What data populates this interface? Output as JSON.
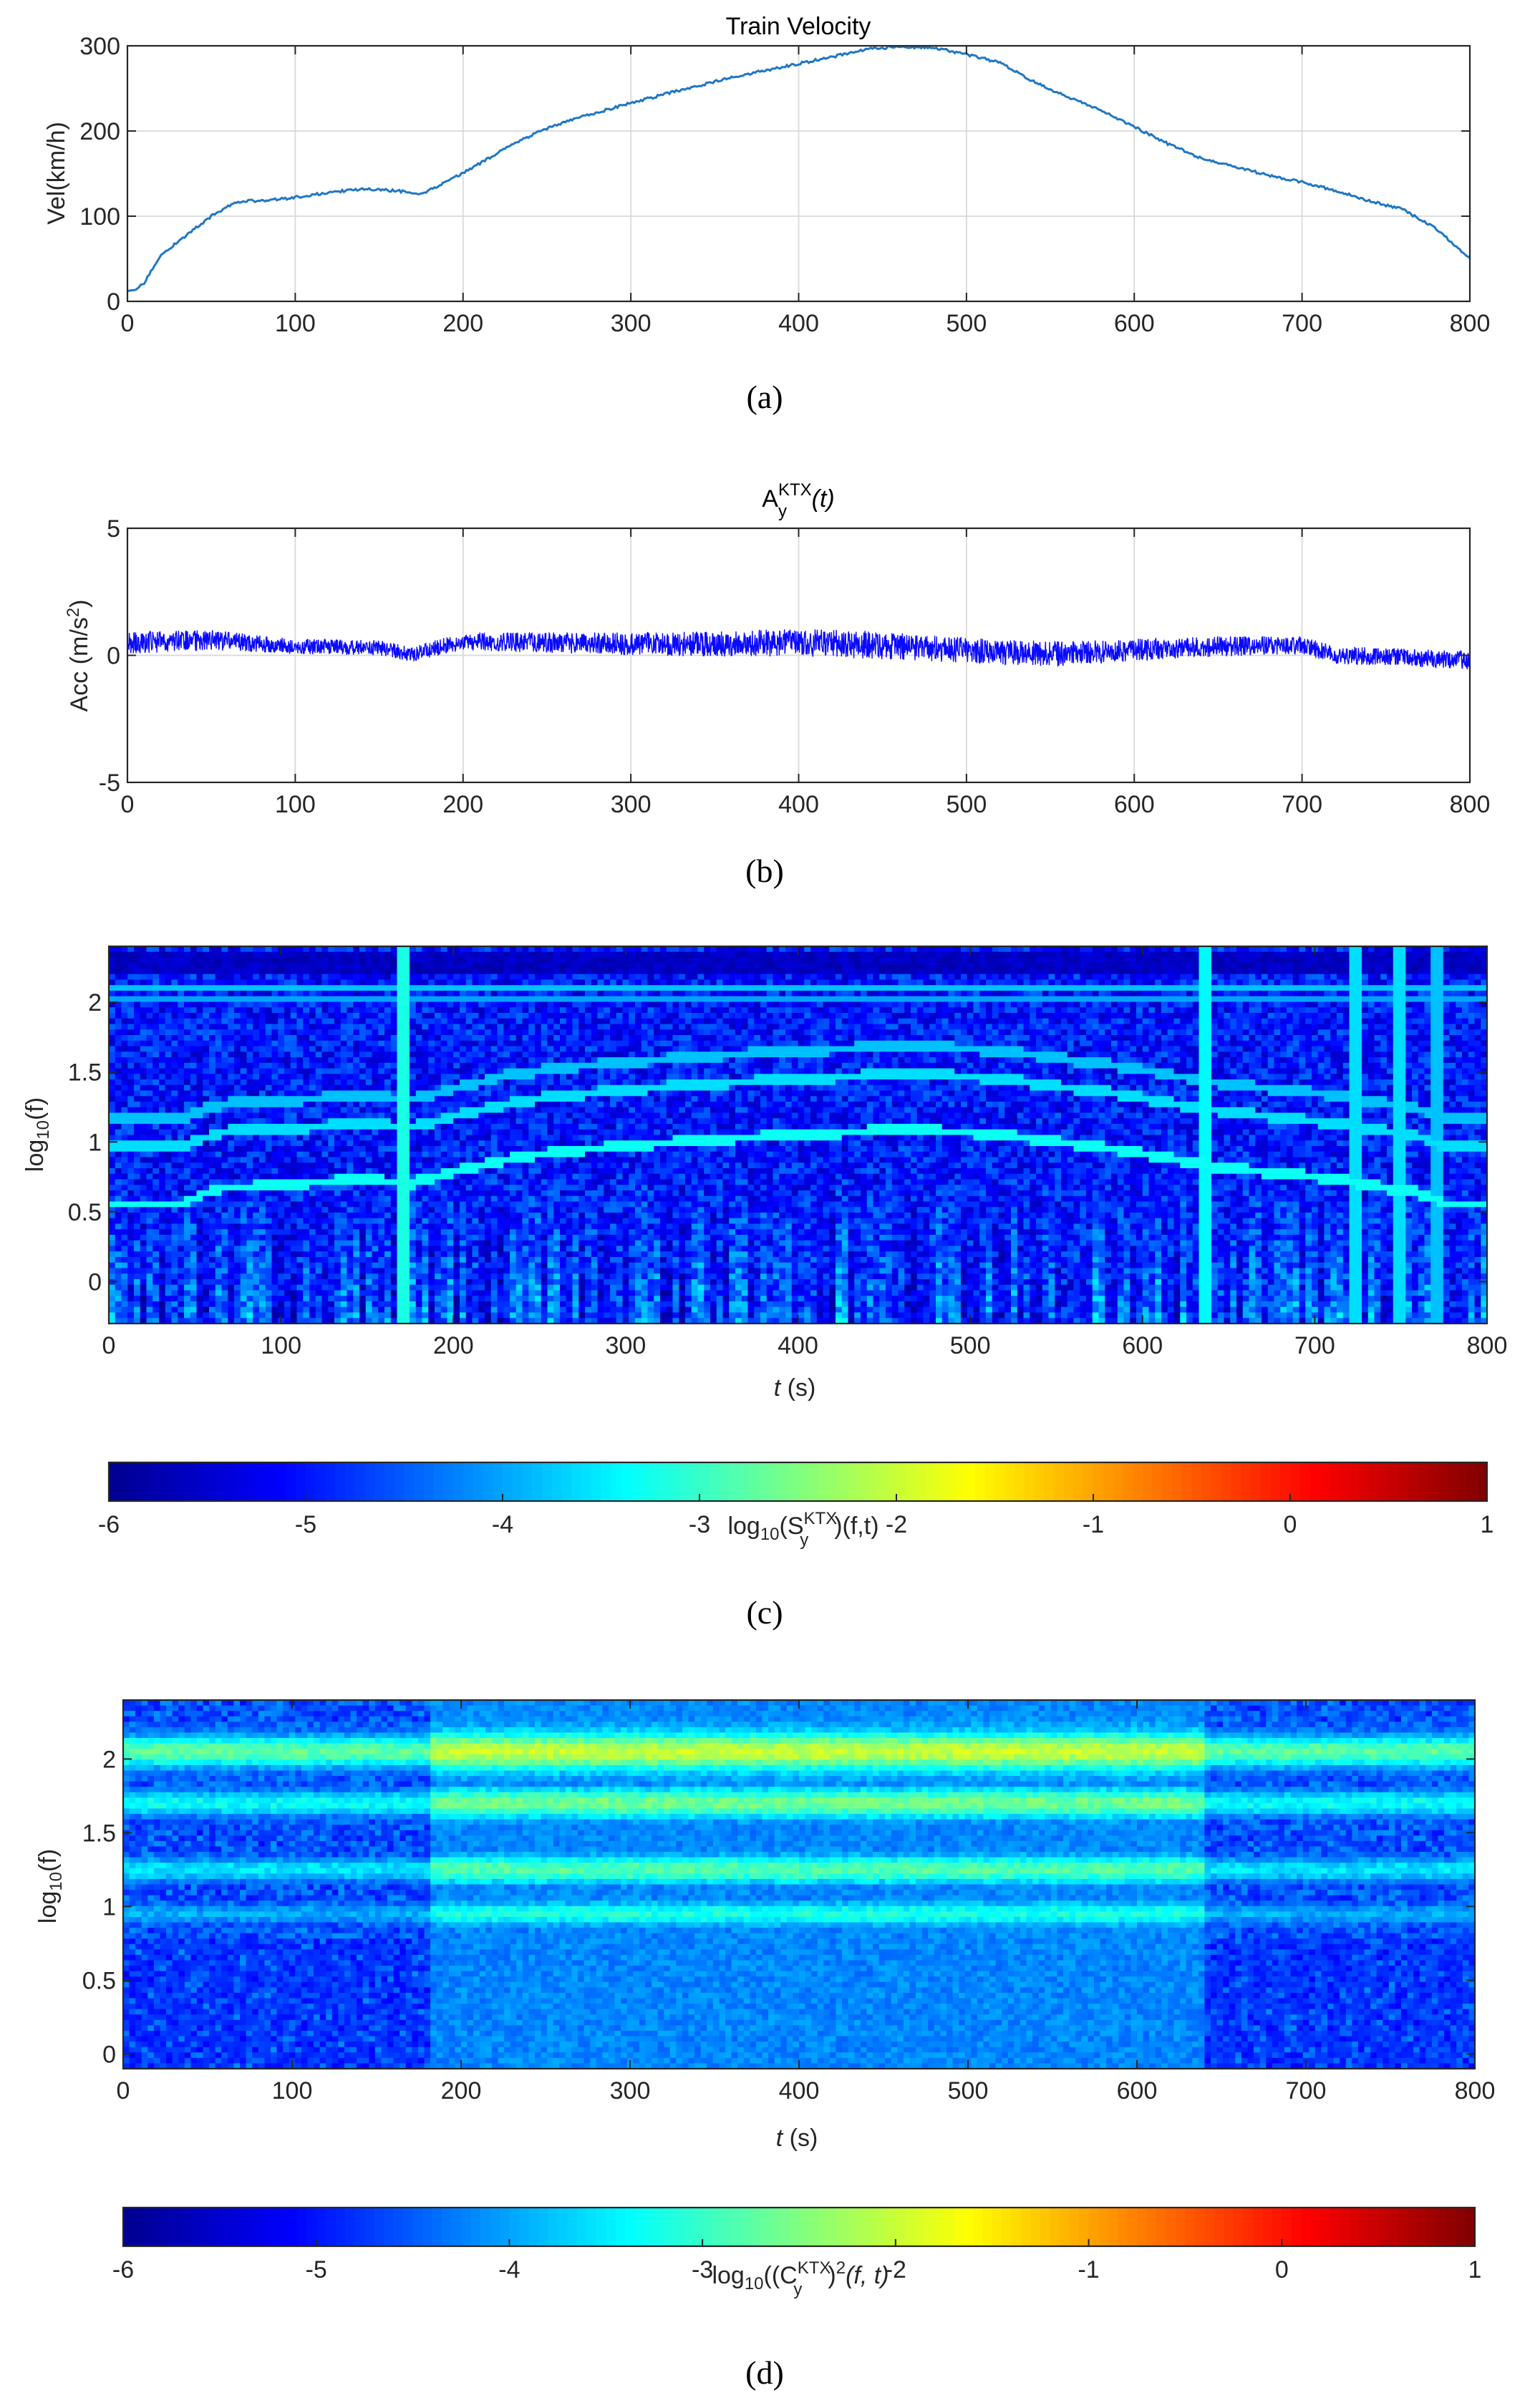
{
  "chart_data": [
    {
      "panel": "a",
      "caption": "(a)",
      "type": "line",
      "title": "Train Velocity",
      "xlabel": "",
      "ylabel": "Vel(km/h)",
      "xlim": [
        0,
        800
      ],
      "ylim": [
        0,
        300
      ],
      "xticks": [
        0,
        100,
        200,
        300,
        400,
        500,
        600,
        700,
        800
      ],
      "yticks": [
        0,
        100,
        200,
        300
      ],
      "grid": true,
      "line_color": "#1f77c4",
      "series": [
        {
          "x": [
            0,
            5,
            10,
            15,
            20,
            30,
            40,
            50,
            60,
            70,
            80,
            100,
            120,
            140,
            160,
            175,
            190,
            210,
            230,
            250,
            270,
            300,
            330,
            360,
            390,
            420,
            440,
            460,
            480,
            500,
            520,
            540,
            560,
            580,
            600,
            620,
            640,
            660,
            680,
            700,
            720,
            740,
            760,
            780,
            800
          ],
          "y": [
            12,
            14,
            22,
            38,
            55,
            70,
            85,
            100,
            112,
            118,
            118,
            122,
            128,
            132,
            130,
            126,
            140,
            162,
            185,
            203,
            216,
            233,
            248,
            263,
            275,
            287,
            296,
            299,
            298,
            290,
            280,
            258,
            240,
            225,
            205,
            185,
            168,
            158,
            148,
            140,
            130,
            118,
            108,
            85,
            50
          ]
        }
      ]
    },
    {
      "panel": "b",
      "caption": "(b)",
      "type": "line",
      "title_base": "A",
      "title_sub": "y",
      "title_sup": "KTX",
      "title_arg": "(t)",
      "xlabel": "",
      "ylabel": "Acc (m/s",
      "ylabel_sup": "2",
      "ylabel_end": ")",
      "xlim": [
        0,
        800
      ],
      "ylim": [
        -5,
        5
      ],
      "xticks": [
        0,
        100,
        200,
        300,
        400,
        500,
        600,
        700,
        800
      ],
      "yticks": [
        -5,
        0,
        5
      ],
      "grid": true,
      "line_color": "#0a0aff",
      "series": [
        {
          "x": [
            0,
            50,
            100,
            150,
            170,
            200,
            250,
            300,
            350,
            400,
            450,
            500,
            550,
            600,
            650,
            700,
            720,
            750,
            800
          ],
          "mean": [
            0.5,
            0.6,
            0.35,
            0.3,
            0.05,
            0.55,
            0.5,
            0.45,
            0.45,
            0.5,
            0.4,
            0.2,
            0.05,
            0.2,
            0.35,
            0.4,
            0.0,
            -0.05,
            -0.2
          ],
          "amplitude": [
            0.45,
            0.4,
            0.3,
            0.3,
            0.3,
            0.35,
            0.4,
            0.45,
            0.5,
            0.55,
            0.55,
            0.5,
            0.5,
            0.45,
            0.4,
            0.35,
            0.35,
            0.35,
            0.35
          ]
        }
      ]
    },
    {
      "panel": "c",
      "caption": "(c)",
      "type": "heatmap",
      "xlabel_italic": "t",
      "xlabel_rest": " (s)",
      "ylabel_base": "log",
      "ylabel_sub": "10",
      "ylabel_arg": "(f)",
      "xlim": [
        0,
        800
      ],
      "ylim": [
        -0.3,
        2.4
      ],
      "xticks": [
        0,
        100,
        200,
        300,
        400,
        500,
        600,
        700,
        800
      ],
      "yticks": [
        0,
        0.5,
        1,
        1.5,
        2
      ],
      "ytick_labels": [
        "0",
        "0.5",
        "1",
        "1.5",
        "2"
      ],
      "colorbar": {
        "ticks": [
          -6,
          -5,
          -4,
          -3,
          -2,
          -1,
          0,
          1
        ],
        "label_base": "log",
        "label_sub": "10",
        "label_mid": "(S",
        "label_sup": "KTX",
        "label_sub2": "y",
        "label_end": ")(f,t)"
      },
      "features": [
        {
          "kind": "dark_band",
          "log10f": 2.3,
          "level": -5.8
        },
        {
          "kind": "bright_band",
          "log10f": 2.1,
          "level": -3.8
        },
        {
          "kind": "bright_band",
          "log10f": 2.03,
          "level": -4.0
        },
        {
          "kind": "speed_harmonic",
          "base_log10f": 1.08,
          "level": -3.3
        },
        {
          "kind": "speed_harmonic",
          "base_log10f": 1.48,
          "level": -3.6
        },
        {
          "kind": "speed_harmonic",
          "base_log10f": 1.68,
          "level": -3.8
        },
        {
          "kind": "vertical_streak",
          "t": 172,
          "level": -3.2
        },
        {
          "kind": "vertical_streak",
          "t": 636,
          "level": -3.4
        },
        {
          "kind": "vertical_streak",
          "t": 725,
          "level": -3.6
        },
        {
          "kind": "vertical_streak",
          "t": 750,
          "level": -3.6
        },
        {
          "kind": "vertical_streak",
          "t": 770,
          "level": -3.8
        }
      ]
    },
    {
      "panel": "d",
      "caption": "(d)",
      "type": "heatmap",
      "xlabel_italic": "t",
      "xlabel_rest": " (s)",
      "ylabel_base": "log",
      "ylabel_sub": "10",
      "ylabel_arg": "(f)",
      "xlim": [
        0,
        800
      ],
      "ylim": [
        -0.1,
        2.4
      ],
      "xticks": [
        0,
        100,
        200,
        300,
        400,
        500,
        600,
        700,
        800
      ],
      "yticks": [
        0,
        0.5,
        1,
        1.5,
        2
      ],
      "ytick_labels": [
        "0",
        "0.5",
        "1",
        "1.5",
        "2"
      ],
      "colorbar": {
        "ticks": [
          -6,
          -5,
          -4,
          -3,
          -2,
          -1,
          0,
          1
        ],
        "label_base": "log",
        "label_sub": "10",
        "label_mid": "((C",
        "label_sup": "KTX",
        "label_sub2": "y",
        "label_end": ")",
        "label_sup2": "2",
        "label_arg": "(f, t)"
      },
      "features": [
        {
          "kind": "bright_band",
          "log10f": 2.05,
          "level": -2.0
        },
        {
          "kind": "bright_band",
          "log10f": 1.7,
          "level": -2.6
        },
        {
          "kind": "bright_band",
          "log10f": 1.25,
          "level": -2.8
        },
        {
          "kind": "bright_band",
          "log10f": 0.95,
          "level": -3.2
        },
        {
          "kind": "low_background",
          "level": -4.6
        }
      ]
    }
  ],
  "colormap": [
    "#00008f",
    "#0000ff",
    "#00ffff",
    "#ffff00",
    "#ff0000",
    "#800000"
  ]
}
